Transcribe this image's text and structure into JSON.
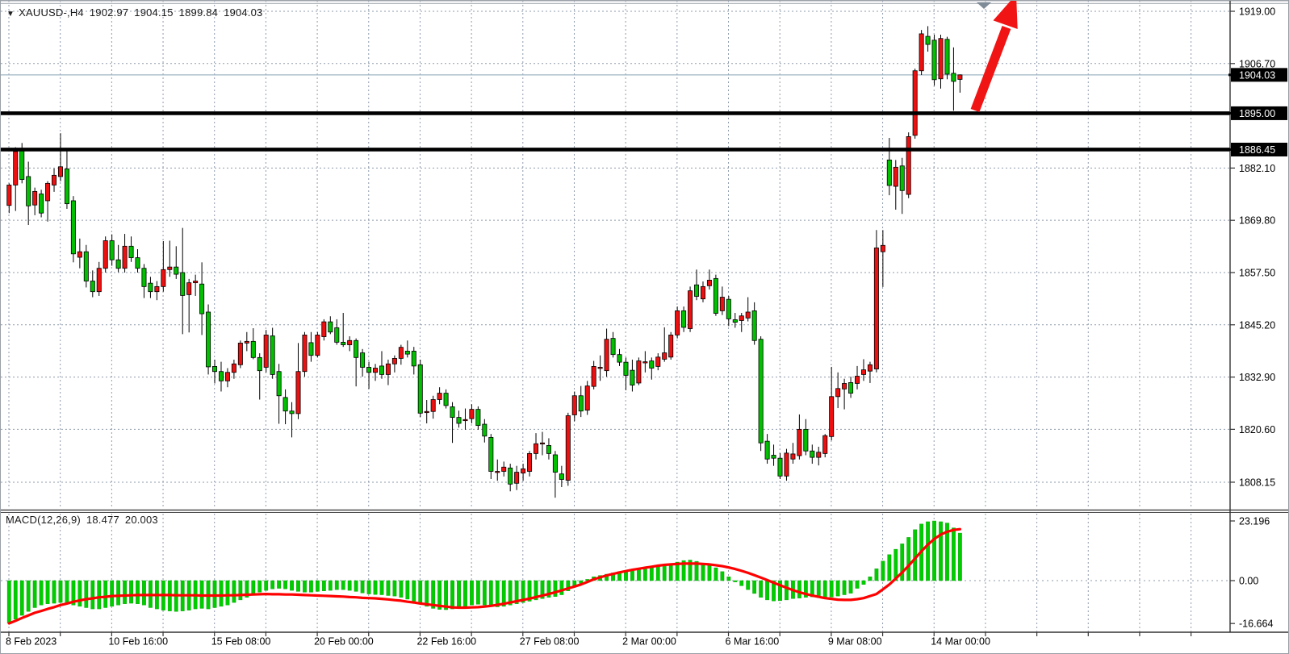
{
  "header": {
    "dropdown_icon": "▼",
    "symbol": "XAUUSD-,H4",
    "open": "1902.97",
    "high": "1904.15",
    "low": "1899.84",
    "close": "1904.03"
  },
  "macd_header": {
    "name": "MACD(12,26,9)",
    "macd_value": "18.477",
    "signal_value": "20.003"
  },
  "price_axis": {
    "labels": [
      {
        "text": "1919.00",
        "price": 1919.0
      },
      {
        "text": "1906.70",
        "price": 1906.7
      },
      {
        "text": "1882.10",
        "price": 1882.1
      },
      {
        "text": "1869.80",
        "price": 1869.8
      },
      {
        "text": "1857.50",
        "price": 1857.5
      },
      {
        "text": "1845.20",
        "price": 1845.2
      },
      {
        "text": "1832.90",
        "price": 1832.9
      },
      {
        "text": "1820.60",
        "price": 1820.6
      },
      {
        "text": "1808.15",
        "price": 1808.15
      }
    ],
    "badges": [
      {
        "text": "1904.03",
        "price": 1904.03,
        "kind": "current-price"
      },
      {
        "text": "1895.00",
        "price": 1895.0,
        "kind": "horizontal-line"
      },
      {
        "text": "1886.45",
        "price": 1886.45,
        "kind": "horizontal-line"
      }
    ]
  },
  "macd_axis": {
    "labels": [
      {
        "text": "23.196",
        "value": 23.196
      },
      {
        "text": "0.00",
        "value": 0.0
      },
      {
        "text": "-16.664",
        "value": -16.664
      }
    ]
  },
  "time_axis": {
    "labels": [
      "8 Feb 2023",
      "10 Feb 16:00",
      "15 Feb 08:00",
      "20 Feb 00:00",
      "22 Feb 16:00",
      "27 Feb 08:00",
      "2 Mar 00:00",
      "6 Mar 16:00",
      "9 Mar 08:00",
      "14 Mar 00:00"
    ],
    "bars_per_label": 16
  },
  "colors": {
    "bull_body": "#ee1010",
    "bear_body": "#00c000",
    "wick": "#000000",
    "grid": "#8f9bab",
    "current_price_line": "#9fb4c4",
    "sr_line": "#000000",
    "macd_histogram": "#00cc00",
    "macd_signal": "#ff0000",
    "badge_bg": "#000000",
    "badge_text": "#ffffff",
    "arrow": "#f01414",
    "marker": "#808b98"
  },
  "chart_data": {
    "type": "candlestick",
    "symbol": "XAUUSD-",
    "timeframe": "H4",
    "ylim": [
      1804,
      1919
    ],
    "grid": "dashed",
    "legend_position": "none",
    "x_tick_labels": [
      "8 Feb 2023",
      "10 Feb 16:00",
      "15 Feb 08:00",
      "20 Feb 00:00",
      "22 Feb 16:00",
      "27 Feb 08:00",
      "2 Mar 00:00",
      "6 Mar 16:00",
      "9 Mar 08:00",
      "14 Mar 00:00"
    ],
    "gridline_prices": [
      1919.0,
      1906.7,
      1895.0,
      1882.1,
      1869.8,
      1857.5,
      1845.2,
      1832.9,
      1820.6,
      1808.15
    ],
    "horizontal_lines": [
      1895.0,
      1886.45
    ],
    "current_price": 1904.03,
    "last_bar": {
      "open": 1902.97,
      "high": 1904.15,
      "low": 1899.84,
      "close": 1904.03
    },
    "annotation_arrow": {
      "direction": "up",
      "from_price": 1895.0,
      "note": "red up arrow drawn above resistance"
    },
    "ohlc": [
      [
        1873.3,
        1878.5,
        1871.5,
        1878.1
      ],
      [
        1878.1,
        1887.0,
        1872.0,
        1886.0
      ],
      [
        1886.6,
        1888.0,
        1878.5,
        1879.4
      ],
      [
        1880.1,
        1883.6,
        1868.7,
        1873.2
      ],
      [
        1873.4,
        1877.5,
        1871.0,
        1876.6
      ],
      [
        1876.0,
        1877.0,
        1870.5,
        1871.5
      ],
      [
        1874.4,
        1879.0,
        1869.5,
        1878.5
      ],
      [
        1878.1,
        1882.0,
        1876.5,
        1880.4
      ],
      [
        1880.1,
        1890.3,
        1879.0,
        1882.4
      ],
      [
        1881.9,
        1886.4,
        1872.5,
        1873.7
      ],
      [
        1874.4,
        1875.5,
        1859.9,
        1861.9
      ],
      [
        1861.1,
        1865.5,
        1858.5,
        1862.4
      ],
      [
        1862.4,
        1864.0,
        1854.0,
        1855.5
      ],
      [
        1855.5,
        1858.0,
        1851.7,
        1853.0
      ],
      [
        1853.0,
        1860.0,
        1852.0,
        1858.5
      ],
      [
        1858.5,
        1866.0,
        1857.5,
        1865.0
      ],
      [
        1865.0,
        1866.5,
        1859.1,
        1860.5
      ],
      [
        1860.5,
        1864.0,
        1857.6,
        1858.5
      ],
      [
        1858.5,
        1866.6,
        1857.5,
        1863.7
      ],
      [
        1863.7,
        1866.0,
        1860.0,
        1861.0
      ],
      [
        1861.0,
        1863.0,
        1857.5,
        1858.5
      ],
      [
        1858.5,
        1859.5,
        1851.5,
        1854.2
      ],
      [
        1855.0,
        1856.5,
        1851.5,
        1853.0
      ],
      [
        1853.0,
        1855.5,
        1851.0,
        1854.2
      ],
      [
        1854.2,
        1864.9,
        1853.0,
        1858.2
      ],
      [
        1858.2,
        1865.0,
        1856.5,
        1858.8
      ],
      [
        1858.8,
        1863.7,
        1856.0,
        1857.1
      ],
      [
        1857.5,
        1868.0,
        1843.0,
        1852.1
      ],
      [
        1852.3,
        1856.0,
        1843.4,
        1855.1
      ],
      [
        1855.1,
        1857.0,
        1852.0,
        1855.5
      ],
      [
        1854.8,
        1859.9,
        1842.8,
        1847.8
      ],
      [
        1848.2,
        1850.0,
        1833.5,
        1835.3
      ],
      [
        1835.4,
        1837.0,
        1831.4,
        1834.2
      ],
      [
        1834.2,
        1836.5,
        1829.5,
        1832.0
      ],
      [
        1832.0,
        1835.0,
        1830.5,
        1834.0
      ],
      [
        1834.0,
        1837.0,
        1832.5,
        1836.0
      ],
      [
        1835.8,
        1841.5,
        1835.0,
        1840.9
      ],
      [
        1840.9,
        1843.5,
        1839.0,
        1841.3
      ],
      [
        1841.3,
        1844.4,
        1837.1,
        1837.5
      ],
      [
        1837.5,
        1838.5,
        1827.6,
        1834.4
      ],
      [
        1835.2,
        1844.0,
        1834.0,
        1842.8
      ],
      [
        1842.6,
        1844.5,
        1832.5,
        1833.5
      ],
      [
        1834.2,
        1836.0,
        1821.9,
        1828.5
      ],
      [
        1828.1,
        1830.0,
        1821.8,
        1824.9
      ],
      [
        1824.9,
        1827.0,
        1818.7,
        1824.3
      ],
      [
        1824.3,
        1840.9,
        1823.0,
        1834.2
      ],
      [
        1834.2,
        1843.5,
        1833.0,
        1842.8
      ],
      [
        1841.0,
        1843.5,
        1836.5,
        1838.0
      ],
      [
        1838.0,
        1843.5,
        1837.5,
        1842.8
      ],
      [
        1842.4,
        1846.5,
        1841.5,
        1845.9
      ],
      [
        1845.9,
        1847.2,
        1843.0,
        1843.5
      ],
      [
        1844.5,
        1846.5,
        1840.5,
        1841.1
      ],
      [
        1841.1,
        1848.0,
        1840.0,
        1840.5
      ],
      [
        1840.5,
        1842.5,
        1839.0,
        1841.5
      ],
      [
        1841.5,
        1842.0,
        1830.7,
        1837.5
      ],
      [
        1838.6,
        1839.5,
        1833.0,
        1835.2
      ],
      [
        1835.2,
        1836.5,
        1830.1,
        1834.0
      ],
      [
        1834.0,
        1836.0,
        1832.0,
        1835.0
      ],
      [
        1835.5,
        1839.0,
        1832.5,
        1833.5
      ],
      [
        1833.5,
        1837.0,
        1831.0,
        1836.0
      ],
      [
        1836.0,
        1838.0,
        1834.0,
        1837.3
      ],
      [
        1837.3,
        1840.5,
        1835.8,
        1839.9
      ],
      [
        1839.0,
        1841.5,
        1837.5,
        1838.3
      ],
      [
        1839.0,
        1840.0,
        1833.5,
        1835.5
      ],
      [
        1835.8,
        1837.0,
        1823.5,
        1824.4
      ],
      [
        1824.8,
        1827.5,
        1822.0,
        1824.8
      ],
      [
        1824.8,
        1828.5,
        1823.1,
        1827.6
      ],
      [
        1827.6,
        1830.5,
        1826.5,
        1829.1
      ],
      [
        1829.1,
        1830.0,
        1825.5,
        1826.2
      ],
      [
        1825.9,
        1827.0,
        1817.4,
        1823.4
      ],
      [
        1823.4,
        1825.0,
        1821.0,
        1822.0
      ],
      [
        1822.9,
        1825.5,
        1820.5,
        1822.9
      ],
      [
        1823.1,
        1826.5,
        1822.0,
        1825.3
      ],
      [
        1825.3,
        1826.0,
        1820.5,
        1821.5
      ],
      [
        1821.8,
        1823.0,
        1817.5,
        1819.0
      ],
      [
        1818.7,
        1819.5,
        1808.9,
        1810.7
      ],
      [
        1810.7,
        1813.5,
        1808.5,
        1810.7
      ],
      [
        1810.7,
        1813.0,
        1809.5,
        1811.7
      ],
      [
        1811.5,
        1812.5,
        1806.0,
        1807.7
      ],
      [
        1807.9,
        1812.0,
        1806.3,
        1810.5
      ],
      [
        1810.3,
        1812.5,
        1808.5,
        1811.3
      ],
      [
        1810.7,
        1815.5,
        1809.5,
        1814.9
      ],
      [
        1814.9,
        1819.7,
        1813.5,
        1817.2
      ],
      [
        1817.4,
        1820.0,
        1814.5,
        1817.4
      ],
      [
        1816.8,
        1818.5,
        1813.5,
        1814.9
      ],
      [
        1814.6,
        1815.5,
        1804.5,
        1810.5
      ],
      [
        1810.1,
        1812.0,
        1807.0,
        1808.8
      ],
      [
        1808.6,
        1824.5,
        1807.3,
        1823.8
      ],
      [
        1824.0,
        1829.5,
        1822.5,
        1828.5
      ],
      [
        1828.5,
        1830.8,
        1823.5,
        1824.9
      ],
      [
        1825.1,
        1832.0,
        1824.0,
        1830.8
      ],
      [
        1830.7,
        1836.7,
        1830.0,
        1835.4
      ],
      [
        1835.2,
        1838.0,
        1832.0,
        1835.2
      ],
      [
        1834.4,
        1844.3,
        1833.0,
        1841.8
      ],
      [
        1842.0,
        1843.5,
        1837.5,
        1838.2
      ],
      [
        1838.2,
        1839.5,
        1835.5,
        1836.4
      ],
      [
        1836.4,
        1837.5,
        1829.8,
        1833.3
      ],
      [
        1834.5,
        1837.0,
        1829.5,
        1831.0
      ],
      [
        1831.5,
        1837.5,
        1831.0,
        1836.7
      ],
      [
        1836.5,
        1839.0,
        1834.0,
        1836.5
      ],
      [
        1836.7,
        1837.5,
        1832.3,
        1835.0
      ],
      [
        1835.4,
        1838.5,
        1834.5,
        1837.6
      ],
      [
        1837.1,
        1844.6,
        1836.5,
        1838.6
      ],
      [
        1837.6,
        1843.5,
        1837.0,
        1842.8
      ],
      [
        1842.8,
        1849.5,
        1842.0,
        1848.5
      ],
      [
        1848.5,
        1849.5,
        1843.5,
        1844.6
      ],
      [
        1844.3,
        1854.2,
        1843.5,
        1853.2
      ],
      [
        1854.6,
        1858.2,
        1851.0,
        1851.9
      ],
      [
        1851.3,
        1855.4,
        1850.5,
        1854.2
      ],
      [
        1854.4,
        1858.2,
        1853.5,
        1855.7
      ],
      [
        1856.1,
        1857.0,
        1847.3,
        1847.9
      ],
      [
        1848.5,
        1854.2,
        1847.5,
        1851.7
      ],
      [
        1851.2,
        1852.0,
        1844.9,
        1846.6
      ],
      [
        1846.4,
        1848.0,
        1844.5,
        1845.8
      ],
      [
        1846.2,
        1848.0,
        1843.5,
        1847.3
      ],
      [
        1846.8,
        1851.7,
        1846.0,
        1848.2
      ],
      [
        1848.5,
        1850.5,
        1840.5,
        1841.5
      ],
      [
        1841.8,
        1842.5,
        1815.5,
        1817.4
      ],
      [
        1817.8,
        1819.5,
        1812.5,
        1813.6
      ],
      [
        1814.5,
        1817.0,
        1812.0,
        1813.8
      ],
      [
        1813.8,
        1815.0,
        1808.9,
        1809.6
      ],
      [
        1809.6,
        1816.0,
        1808.5,
        1815.0
      ],
      [
        1813.6,
        1817.4,
        1812.5,
        1814.8
      ],
      [
        1814.4,
        1824.1,
        1813.5,
        1820.6
      ],
      [
        1820.6,
        1823.0,
        1814.5,
        1815.5
      ],
      [
        1815.5,
        1817.0,
        1812.5,
        1814.0
      ],
      [
        1814.0,
        1816.5,
        1812.1,
        1815.2
      ],
      [
        1814.9,
        1819.5,
        1814.0,
        1819.1
      ],
      [
        1818.9,
        1835.3,
        1818.0,
        1828.3
      ],
      [
        1828.3,
        1834.0,
        1825.6,
        1830.2
      ],
      [
        1830.1,
        1832.5,
        1825.3,
        1831.4
      ],
      [
        1831.6,
        1833.0,
        1828.0,
        1829.1
      ],
      [
        1831.4,
        1835.5,
        1830.0,
        1833.1
      ],
      [
        1833.5,
        1837.1,
        1832.0,
        1834.6
      ],
      [
        1834.3,
        1836.5,
        1831.5,
        1835.8
      ],
      [
        1834.8,
        1867.5,
        1834.0,
        1863.3
      ],
      [
        1862.4,
        1867.5,
        1854.1,
        1863.9
      ],
      [
        1884.0,
        1889.2,
        1875.7,
        1878.0
      ],
      [
        1877.8,
        1884.0,
        1872.3,
        1882.3
      ],
      [
        1882.6,
        1884.5,
        1871.3,
        1876.8
      ],
      [
        1875.9,
        1890.5,
        1875.0,
        1889.5
      ],
      [
        1889.8,
        1905.5,
        1889.0,
        1905.0
      ],
      [
        1905.0,
        1914.6,
        1904.0,
        1913.7
      ],
      [
        1913.1,
        1915.5,
        1909.5,
        1911.2
      ],
      [
        1912.2,
        1913.5,
        1901.5,
        1902.9
      ],
      [
        1903.1,
        1913.5,
        1900.8,
        1912.6
      ],
      [
        1912.4,
        1913.0,
        1903.0,
        1904.2
      ],
      [
        1904.4,
        1910.5,
        1895.6,
        1902.5
      ],
      [
        1902.97,
        1904.15,
        1899.84,
        1904.03
      ]
    ],
    "macd": {
      "type": "bar+line",
      "parameters": "12,26,9",
      "ylim": [
        -16.664,
        23.196
      ],
      "last_macd": 18.477,
      "last_signal": 20.003,
      "histogram": [
        -16.6,
        -15.0,
        -13.5,
        -12.0,
        -10.5,
        -9.5,
        -9.0,
        -8.8,
        -8.5,
        -8.8,
        -9.5,
        -10.0,
        -10.5,
        -11.0,
        -11.0,
        -10.5,
        -10.0,
        -9.5,
        -9.0,
        -8.8,
        -9.0,
        -9.5,
        -10.5,
        -11.0,
        -11.5,
        -11.8,
        -12.0,
        -11.8,
        -11.5,
        -11.0,
        -10.8,
        -11.0,
        -10.5,
        -10.0,
        -9.5,
        -8.5,
        -7.5,
        -6.5,
        -5.5,
        -4.5,
        -3.8,
        -3.2,
        -3.0,
        -3.2,
        -3.8,
        -4.2,
        -4.5,
        -4.5,
        -4.2,
        -4.0,
        -3.8,
        -3.5,
        -3.5,
        -3.8,
        -4.2,
        -4.8,
        -5.2,
        -5.4,
        -5.5,
        -5.8,
        -6.0,
        -6.5,
        -7.2,
        -8.0,
        -9.0,
        -10.0,
        -10.8,
        -11.2,
        -11.3,
        -11.0,
        -10.5,
        -10.0,
        -9.5,
        -9.2,
        -9.5,
        -10.0,
        -10.2,
        -10.0,
        -9.5,
        -9.0,
        -8.5,
        -8.0,
        -7.5,
        -7.0,
        -6.5,
        -6.2,
        -5.5,
        -4.0,
        -2.5,
        -1.0,
        0.5,
        1.5,
        2.0,
        2.5,
        3.0,
        3.5,
        3.8,
        4.0,
        4.2,
        4.5,
        5.0,
        5.5,
        6.0,
        6.5,
        7.2,
        7.8,
        8.0,
        7.5,
        6.8,
        6.0,
        5.0,
        3.5,
        1.5,
        -0.5,
        -2.0,
        -3.5,
        -5.0,
        -6.5,
        -7.5,
        -7.9,
        -7.8,
        -7.5,
        -7.0,
        -6.8,
        -6.5,
        -6.3,
        -6.6,
        -6.9,
        -6.4,
        -6.0,
        -5.5,
        -4.9,
        -3.0,
        -1.5,
        1.5,
        4.6,
        7.6,
        10.1,
        12.2,
        14.3,
        16.8,
        19.8,
        22.0,
        22.9,
        23.196,
        22.9,
        22.4,
        20.5,
        18.477
      ],
      "signal": [
        -16.6,
        -15.6,
        -14.5,
        -13.5,
        -12.5,
        -11.8,
        -11.0,
        -10.3,
        -9.5,
        -8.9,
        -8.2,
        -7.7,
        -7.2,
        -6.9,
        -6.5,
        -6.3,
        -6.0,
        -5.9,
        -5.8,
        -5.7,
        -5.6,
        -5.6,
        -5.6,
        -5.6,
        -5.6,
        -5.6,
        -5.7,
        -5.7,
        -5.7,
        -5.7,
        -5.8,
        -5.8,
        -5.8,
        -5.8,
        -5.7,
        -5.7,
        -5.6,
        -5.5,
        -5.4,
        -5.3,
        -5.2,
        -5.3,
        -5.3,
        -5.4,
        -5.4,
        -5.5,
        -5.6,
        -5.7,
        -5.8,
        -5.9,
        -6.0,
        -6.1,
        -6.2,
        -6.4,
        -6.5,
        -6.7,
        -6.8,
        -6.9,
        -7.1,
        -7.3,
        -7.6,
        -7.8,
        -8.2,
        -8.5,
        -8.9,
        -9.2,
        -9.5,
        -9.8,
        -10.1,
        -10.4,
        -10.5,
        -10.5,
        -10.4,
        -10.3,
        -10.1,
        -9.8,
        -9.4,
        -9.0,
        -8.5,
        -8.0,
        -7.5,
        -7.0,
        -6.4,
        -5.8,
        -5.2,
        -4.5,
        -3.8,
        -3.0,
        -2.3,
        -1.5,
        -0.5,
        0.5,
        1.3,
        2.0,
        2.6,
        3.2,
        3.7,
        4.2,
        4.6,
        5.0,
        5.4,
        5.8,
        6.1,
        6.3,
        6.5,
        6.6,
        6.6,
        6.6,
        6.5,
        6.3,
        6.0,
        5.6,
        5.1,
        4.5,
        3.8,
        3.0,
        2.1,
        1.2,
        0.2,
        -0.8,
        -1.8,
        -2.8,
        -3.7,
        -4.5,
        -5.2,
        -5.8,
        -6.3,
        -6.8,
        -7.1,
        -7.4,
        -7.5,
        -7.5,
        -7.2,
        -6.8,
        -6.0,
        -5.2,
        -3.4,
        -1.5,
        0.8,
        3.2,
        5.8,
        8.6,
        11.4,
        14.0,
        16.2,
        17.9,
        19.0,
        19.7,
        20.003
      ]
    }
  }
}
